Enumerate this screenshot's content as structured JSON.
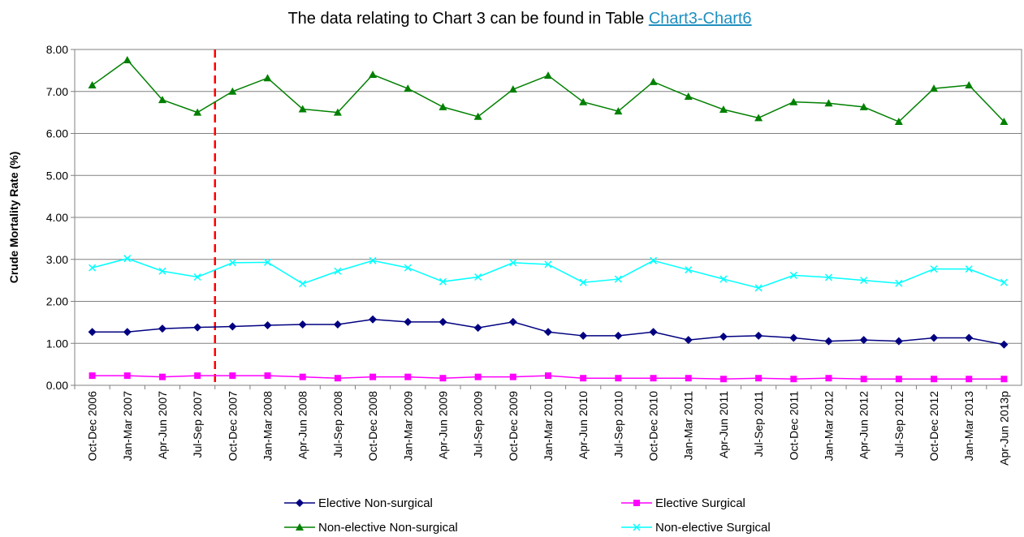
{
  "chart_data": {
    "type": "line",
    "title": "The data relating to Chart 3 can be found in Table",
    "title_link": "Chart3-Chart6",
    "y_label": "Crude Mortality Rate (%)",
    "categories": [
      "Oct-Dec 2006",
      "Jan-Mar 2007",
      "Apr-Jun 2007",
      "Jul-Sep 2007",
      "Oct-Dec 2007",
      "Jan-Mar 2008",
      "Apr-Jun 2008",
      "Jul-Sep 2008",
      "Oct-Dec 2008",
      "Jan-Mar 2009",
      "Apr-Jun 2009",
      "Jul-Sep 2009",
      "Oct-Dec 2009",
      "Jan-Mar 2010",
      "Apr-Jun 2010",
      "Jul-Sep 2010",
      "Oct-Dec 2010",
      "Jan-Mar 2011",
      "Apr-Jun 2011",
      "Jul-Sep 2011",
      "Oct-Dec 2011",
      "Jan-Mar 2012",
      "Apr-Jun 2012",
      "Jul-Sep 2012",
      "Oct-Dec 2012",
      "Jan-Mar 2013",
      "Apr-Jun 2013p"
    ],
    "series": [
      {
        "name": "Elective Non-surgical",
        "color": "#000080",
        "marker": "diamond",
        "values": [
          1.27,
          1.27,
          1.35,
          1.38,
          1.4,
          1.43,
          1.45,
          1.45,
          1.57,
          1.51,
          1.51,
          1.37,
          1.51,
          1.27,
          1.18,
          1.18,
          1.27,
          1.08,
          1.16,
          1.18,
          1.13,
          1.05,
          1.08,
          1.05,
          1.13,
          1.13,
          0.97
        ]
      },
      {
        "name": "Elective Surgical",
        "color": "#ff00ff",
        "marker": "square",
        "values": [
          0.23,
          0.23,
          0.2,
          0.23,
          0.23,
          0.23,
          0.2,
          0.17,
          0.2,
          0.2,
          0.17,
          0.2,
          0.2,
          0.23,
          0.17,
          0.17,
          0.17,
          0.17,
          0.15,
          0.17,
          0.15,
          0.17,
          0.15,
          0.15,
          0.15,
          0.15,
          0.15
        ]
      },
      {
        "name": "Non-elective Non-surgical",
        "color": "#008000",
        "marker": "triangle",
        "values": [
          7.15,
          7.75,
          6.8,
          6.5,
          7.0,
          7.32,
          6.58,
          6.5,
          7.4,
          7.07,
          6.63,
          6.4,
          7.05,
          7.38,
          6.75,
          6.53,
          7.23,
          6.88,
          6.57,
          6.37,
          6.75,
          6.72,
          6.63,
          6.28,
          7.07,
          7.15,
          6.28
        ]
      },
      {
        "name": "Non-elective Surgical",
        "color": "#00ffff",
        "marker": "x",
        "values": [
          2.8,
          3.02,
          2.72,
          2.58,
          2.92,
          2.93,
          2.42,
          2.72,
          2.97,
          2.8,
          2.47,
          2.58,
          2.92,
          2.88,
          2.45,
          2.53,
          2.97,
          2.75,
          2.53,
          2.32,
          2.62,
          2.57,
          2.5,
          2.43,
          2.77,
          2.77,
          2.45
        ]
      }
    ],
    "ylim": [
      0,
      8
    ],
    "yticks": [
      {
        "value": 0,
        "label": "0.00"
      },
      {
        "value": 1,
        "label": "1.00"
      },
      {
        "value": 2,
        "label": "2.00"
      },
      {
        "value": 3,
        "label": "3.00"
      },
      {
        "value": 4,
        "label": "4.00"
      },
      {
        "value": 5,
        "label": "5.00"
      },
      {
        "value": 6,
        "label": "6.00"
      },
      {
        "value": 7,
        "label": "7.00"
      },
      {
        "value": 8,
        "label": "8.00"
      }
    ],
    "grid": true,
    "legend": "bottom",
    "divider_before": "Oct-Dec 2007",
    "divider_color": "#ff0000"
  }
}
